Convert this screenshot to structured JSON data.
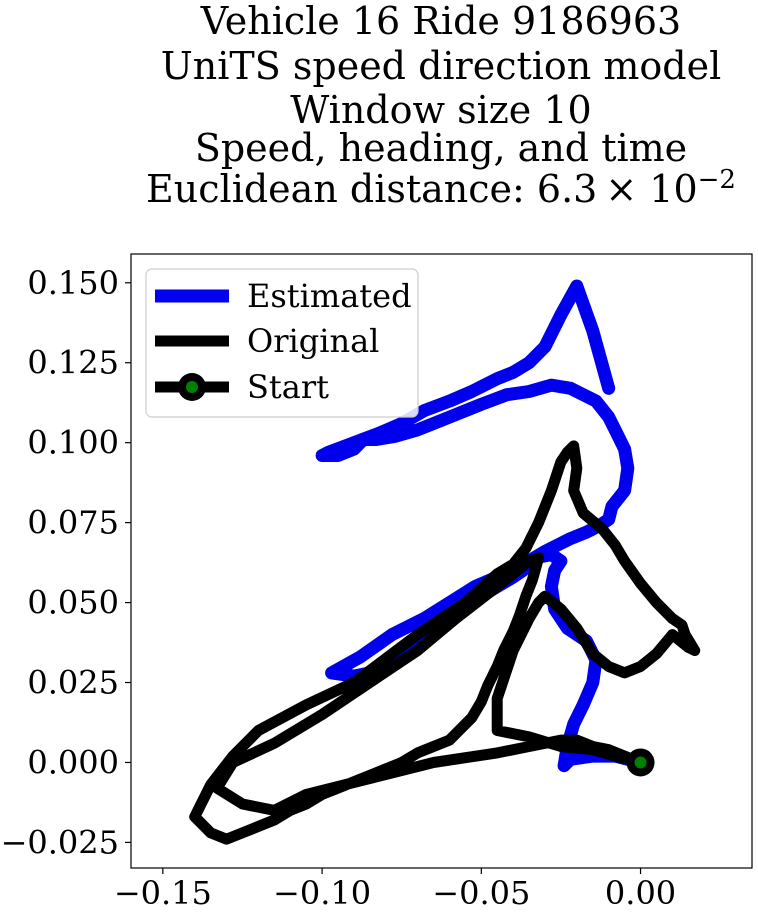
{
  "chart_data": {
    "type": "line",
    "title_lines": [
      "Vehicle 16 Ride 9186963",
      "UniTS speed direction model",
      "Window size 10",
      "Speed, heading, and time",
      "Euclidean distance: 6.3×10⁻²"
    ],
    "title_base": "Euclidean distance: 6.3",
    "title_exp_base": "× 10",
    "title_exp": "−2",
    "xlim": [
      -0.16,
      0.035
    ],
    "ylim": [
      -0.033,
      0.159
    ],
    "xticks": [
      -0.15,
      -0.1,
      -0.05,
      0.0
    ],
    "xtick_labels": [
      "−0.15",
      "−0.10",
      "−0.05",
      "0.00"
    ],
    "yticks": [
      0.15,
      0.125,
      0.1,
      0.075,
      0.05,
      0.025,
      0.0,
      -0.025
    ],
    "ytick_labels": [
      "0.150",
      "0.125",
      "0.100",
      "0.075",
      "0.050",
      "0.025",
      "0.000",
      "−0.025"
    ],
    "grid": false,
    "legend_position": "top-left",
    "series": [
      {
        "name": "Estimated",
        "color": "#0000ee",
        "x": [
          0.0,
          -0.008,
          -0.015,
          -0.022,
          -0.024,
          -0.023,
          -0.021,
          -0.018,
          -0.015,
          -0.014,
          -0.017,
          -0.023,
          -0.027,
          -0.028,
          -0.027,
          -0.025,
          -0.028,
          -0.033,
          -0.035,
          -0.037,
          -0.04,
          -0.045,
          -0.05,
          -0.055,
          -0.06,
          -0.065,
          -0.075,
          -0.08,
          -0.085,
          -0.09,
          -0.097,
          -0.088,
          -0.078,
          -0.068,
          -0.06,
          -0.052,
          -0.045,
          -0.04,
          -0.035,
          -0.03,
          -0.026,
          -0.022,
          -0.017,
          -0.013,
          -0.01,
          -0.009,
          -0.005,
          -0.004,
          -0.005,
          -0.008,
          -0.01,
          -0.014,
          -0.022,
          -0.028,
          -0.035,
          -0.042,
          -0.05,
          -0.06,
          -0.07,
          -0.077,
          -0.083,
          -0.087,
          -0.088,
          -0.09,
          -0.095,
          -0.1,
          -0.098,
          -0.09,
          -0.082,
          -0.075,
          -0.068,
          -0.06,
          -0.053,
          -0.045,
          -0.04,
          -0.035,
          -0.03,
          -0.025,
          -0.02,
          -0.015,
          -0.01
        ],
        "y": [
          0.0,
          0.002,
          0.002,
          0.001,
          -0.001,
          0.005,
          0.012,
          0.018,
          0.025,
          0.032,
          0.038,
          0.042,
          0.048,
          0.055,
          0.06,
          0.063,
          0.065,
          0.064,
          0.062,
          0.06,
          0.058,
          0.055,
          0.052,
          0.048,
          0.044,
          0.04,
          0.035,
          0.03,
          0.028,
          0.027,
          0.028,
          0.033,
          0.04,
          0.045,
          0.05,
          0.055,
          0.058,
          0.061,
          0.063,
          0.066,
          0.068,
          0.07,
          0.072,
          0.074,
          0.076,
          0.08,
          0.085,
          0.092,
          0.098,
          0.104,
          0.108,
          0.113,
          0.117,
          0.118,
          0.116,
          0.115,
          0.112,
          0.108,
          0.104,
          0.102,
          0.101,
          0.101,
          0.1,
          0.098,
          0.096,
          0.096,
          0.097,
          0.1,
          0.103,
          0.106,
          0.11,
          0.113,
          0.116,
          0.12,
          0.122,
          0.125,
          0.13,
          0.14,
          0.149,
          0.135,
          0.117
        ]
      },
      {
        "name": "Original",
        "color": "#000000",
        "x": [
          0.0,
          -0.008,
          -0.015,
          -0.025,
          -0.035,
          -0.045,
          -0.045,
          -0.04,
          -0.035,
          -0.032,
          -0.03,
          -0.025,
          -0.02,
          -0.015,
          -0.01,
          -0.005,
          0.0,
          0.005,
          0.01,
          0.015,
          0.017,
          0.014,
          0.013,
          0.01,
          0.005,
          0.0,
          -0.005,
          -0.008,
          -0.012,
          -0.018,
          -0.021,
          -0.02,
          -0.021,
          -0.023,
          -0.025,
          -0.028,
          -0.032,
          -0.036,
          -0.04,
          -0.045,
          -0.055,
          -0.07,
          -0.09,
          -0.105,
          -0.12,
          -0.128,
          -0.135,
          -0.14,
          -0.135,
          -0.13,
          -0.125,
          -0.12,
          -0.115,
          -0.11,
          -0.105,
          -0.1,
          -0.095,
          -0.09,
          -0.085,
          -0.08,
          -0.075,
          -0.07,
          -0.065,
          -0.06,
          -0.057,
          -0.053,
          -0.05,
          -0.048,
          -0.045,
          -0.043,
          -0.04,
          -0.038,
          -0.036,
          -0.034,
          -0.032,
          -0.032,
          -0.035,
          -0.045,
          -0.058,
          -0.07,
          -0.085,
          -0.1,
          -0.115,
          -0.128,
          -0.133,
          -0.125,
          -0.115,
          -0.105,
          -0.085,
          -0.065,
          -0.045,
          -0.035,
          -0.025,
          -0.02,
          -0.015,
          -0.01,
          -0.005,
          0.0
        ],
        "y": [
          0.0,
          0.002,
          0.004,
          0.005,
          0.008,
          0.01,
          0.02,
          0.035,
          0.045,
          0.05,
          0.052,
          0.048,
          0.042,
          0.034,
          0.03,
          0.028,
          0.03,
          0.034,
          0.04,
          0.036,
          0.035,
          0.04,
          0.043,
          0.045,
          0.05,
          0.056,
          0.063,
          0.068,
          0.073,
          0.078,
          0.085,
          0.092,
          0.099,
          0.097,
          0.094,
          0.085,
          0.075,
          0.067,
          0.062,
          0.059,
          0.05,
          0.04,
          0.025,
          0.018,
          0.01,
          0.002,
          -0.007,
          -0.017,
          -0.022,
          -0.024,
          -0.022,
          -0.02,
          -0.018,
          -0.015,
          -0.013,
          -0.01,
          -0.008,
          -0.006,
          -0.004,
          -0.002,
          0.0,
          0.003,
          0.005,
          0.007,
          0.01,
          0.014,
          0.019,
          0.024,
          0.03,
          0.035,
          0.041,
          0.046,
          0.052,
          0.057,
          0.064,
          0.064,
          0.063,
          0.055,
          0.045,
          0.035,
          0.025,
          0.015,
          0.006,
          0.0,
          -0.008,
          -0.013,
          -0.015,
          -0.01,
          -0.005,
          0.0,
          0.003,
          0.005,
          0.007,
          0.007,
          0.005,
          0.004,
          0.002,
          0.0
        ]
      },
      {
        "name": "Start",
        "color": "#000000",
        "marker_face": "#008000",
        "x": [
          0.0
        ],
        "y": [
          0.0
        ]
      }
    ]
  }
}
